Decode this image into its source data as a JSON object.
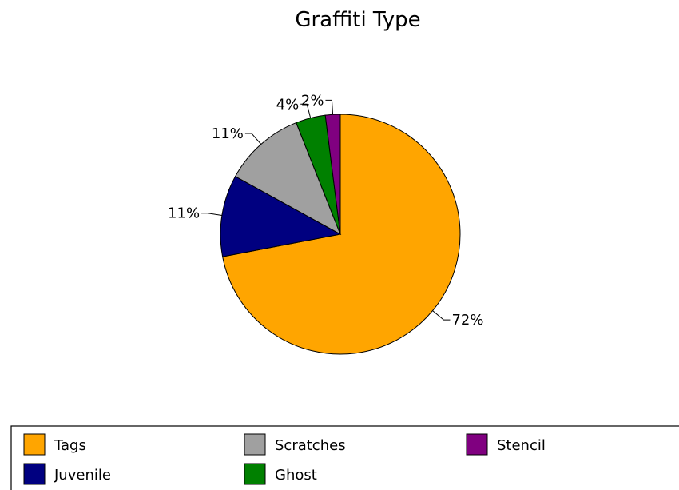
{
  "chart_data": {
    "type": "pie",
    "title": "Graffiti Type",
    "legend_position": "bottom",
    "slices": [
      {
        "name": "Tags",
        "value": 72,
        "label": "72%",
        "color": "#FFA500"
      },
      {
        "name": "Juvenile",
        "value": 11,
        "label": "11%",
        "color": "#000080"
      },
      {
        "name": "Scratches",
        "value": 11,
        "label": "11%",
        "color": "#A0A0A0"
      },
      {
        "name": "Ghost",
        "value": 4,
        "label": "4%",
        "color": "#008000"
      },
      {
        "name": "Stencil",
        "value": 2,
        "label": "2%",
        "color": "#800080"
      }
    ],
    "legend_order": [
      "Tags",
      "Scratches",
      "Stencil",
      "Juvenile",
      "Ghost"
    ]
  }
}
